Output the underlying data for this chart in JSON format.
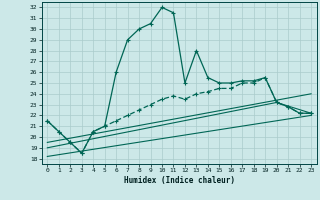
{
  "xlabel": "Humidex (Indice chaleur)",
  "background_color": "#cce8e8",
  "grid_color": "#aacccc",
  "line_color": "#006655",
  "xlim": [
    -0.5,
    23.5
  ],
  "ylim": [
    17.5,
    32.5
  ],
  "xticks": [
    0,
    1,
    2,
    3,
    4,
    5,
    6,
    7,
    8,
    9,
    10,
    11,
    12,
    13,
    14,
    15,
    16,
    17,
    18,
    19,
    20,
    21,
    22,
    23
  ],
  "yticks": [
    18,
    19,
    20,
    21,
    22,
    23,
    24,
    25,
    26,
    27,
    28,
    29,
    30,
    31,
    32
  ],
  "line1_x": [
    0,
    1,
    2,
    3,
    4,
    5,
    6,
    7,
    8,
    9,
    10,
    11,
    12,
    13,
    14,
    15,
    16,
    17,
    18,
    19,
    20,
    21,
    22,
    23
  ],
  "line1_y": [
    21.5,
    20.5,
    19.5,
    18.5,
    20.5,
    21.0,
    26.0,
    29.0,
    30.0,
    30.5,
    32.0,
    31.5,
    25.0,
    28.0,
    25.5,
    25.0,
    25.0,
    25.2,
    25.2,
    25.5,
    23.2,
    22.8,
    22.2,
    22.2
  ],
  "line2_x": [
    0,
    1,
    2,
    3,
    4,
    5,
    6,
    7,
    8,
    9,
    10,
    11,
    12,
    13,
    14,
    15,
    16,
    17,
    18,
    19,
    20,
    21,
    22,
    23
  ],
  "line2_y": [
    21.5,
    20.5,
    19.5,
    18.5,
    20.5,
    21.0,
    21.5,
    22.0,
    22.5,
    23.0,
    23.5,
    23.8,
    23.5,
    24.0,
    24.2,
    24.5,
    24.5,
    25.0,
    25.0,
    25.5,
    23.2,
    22.8,
    22.2,
    22.2
  ],
  "line3_x": [
    0,
    23
  ],
  "line3_y": [
    19.5,
    24.0
  ],
  "line4_x": [
    0,
    20,
    23
  ],
  "line4_y": [
    19.0,
    23.2,
    22.2
  ],
  "line5_x": [
    0,
    23
  ],
  "line5_y": [
    18.2,
    22.0
  ]
}
